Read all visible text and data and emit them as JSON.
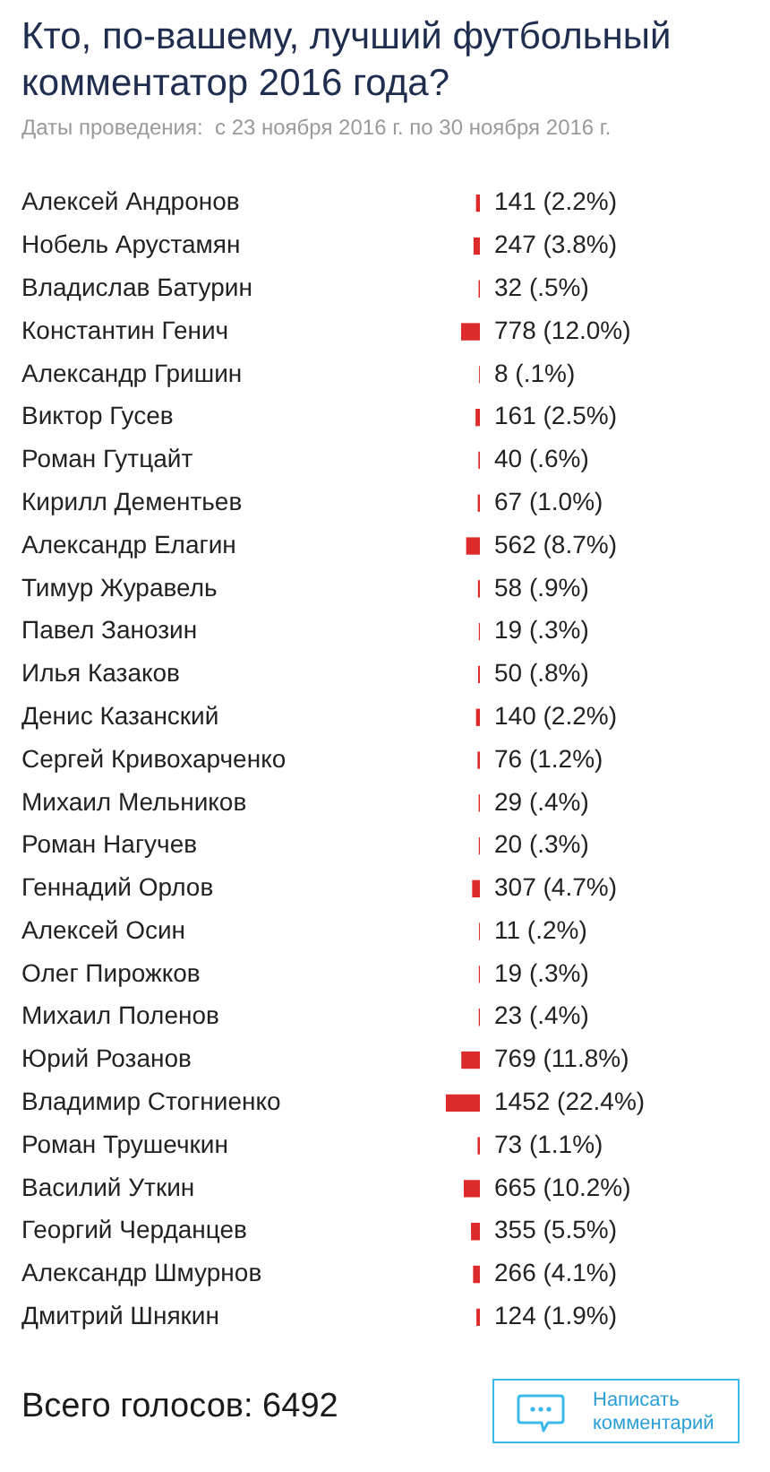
{
  "chart_data": {
    "type": "bar",
    "orientation": "horizontal",
    "title": "Кто, по-вашему, лучший футбольный комментатор 2016 года?",
    "subtitle": "Даты проведения:  с 23 ноября 2016 г. по 30 ноября 2016 г.",
    "categories": [
      "Алексей Андронов",
      "Нобель Арустамян",
      "Владислав Батурин",
      "Константин Генич",
      "Александр Гришин",
      "Виктор Гусев",
      "Роман Гутцайт",
      "Кирилл Дементьев",
      "Александр Елагин",
      "Тимур Журавель",
      "Павел Занозин",
      "Илья Казаков",
      "Денис Казанский",
      "Сергей Кривохарченко",
      "Михаил Мельников",
      "Роман Нагучев",
      "Геннадий Орлов",
      "Алексей Осин",
      "Олег Пирожков",
      "Михаил Поленов",
      "Юрий Розанов",
      "Владимир Стогниенко",
      "Роман Трушечкин",
      "Василий Уткин",
      "Георгий Черданцев",
      "Александр Шмурнов",
      "Дмитрий Шнякин"
    ],
    "values": [
      141,
      247,
      32,
      778,
      8,
      161,
      40,
      67,
      562,
      58,
      19,
      50,
      140,
      76,
      29,
      20,
      307,
      11,
      19,
      23,
      769,
      1452,
      73,
      665,
      355,
      266,
      124
    ],
    "value_labels": [
      "141 (2.2%)",
      "247 (3.8%)",
      "32 (.5%)",
      "778 (12.0%)",
      "8 (.1%)",
      "161 (2.5%)",
      "40 (.6%)",
      "67 (1.0%)",
      "562 (8.7%)",
      "58 (.9%)",
      "19 (.3%)",
      "50 (.8%)",
      "140 (2.2%)",
      "76 (1.2%)",
      "29 (.4%)",
      "20 (.3%)",
      "307 (4.7%)",
      "11 (.2%)",
      "19 (.3%)",
      "23 (.4%)",
      "769 (11.8%)",
      "1452 (22.4%)",
      "73 (1.1%)",
      "665 (10.2%)",
      "355 (5.5%)",
      "266 (4.1%)",
      "124 (1.9%)"
    ],
    "color": "#dd2b2b",
    "tick_labels": "y",
    "annotations": [
      "Всего голосов: 6492",
      "Написать комментарий"
    ]
  }
}
